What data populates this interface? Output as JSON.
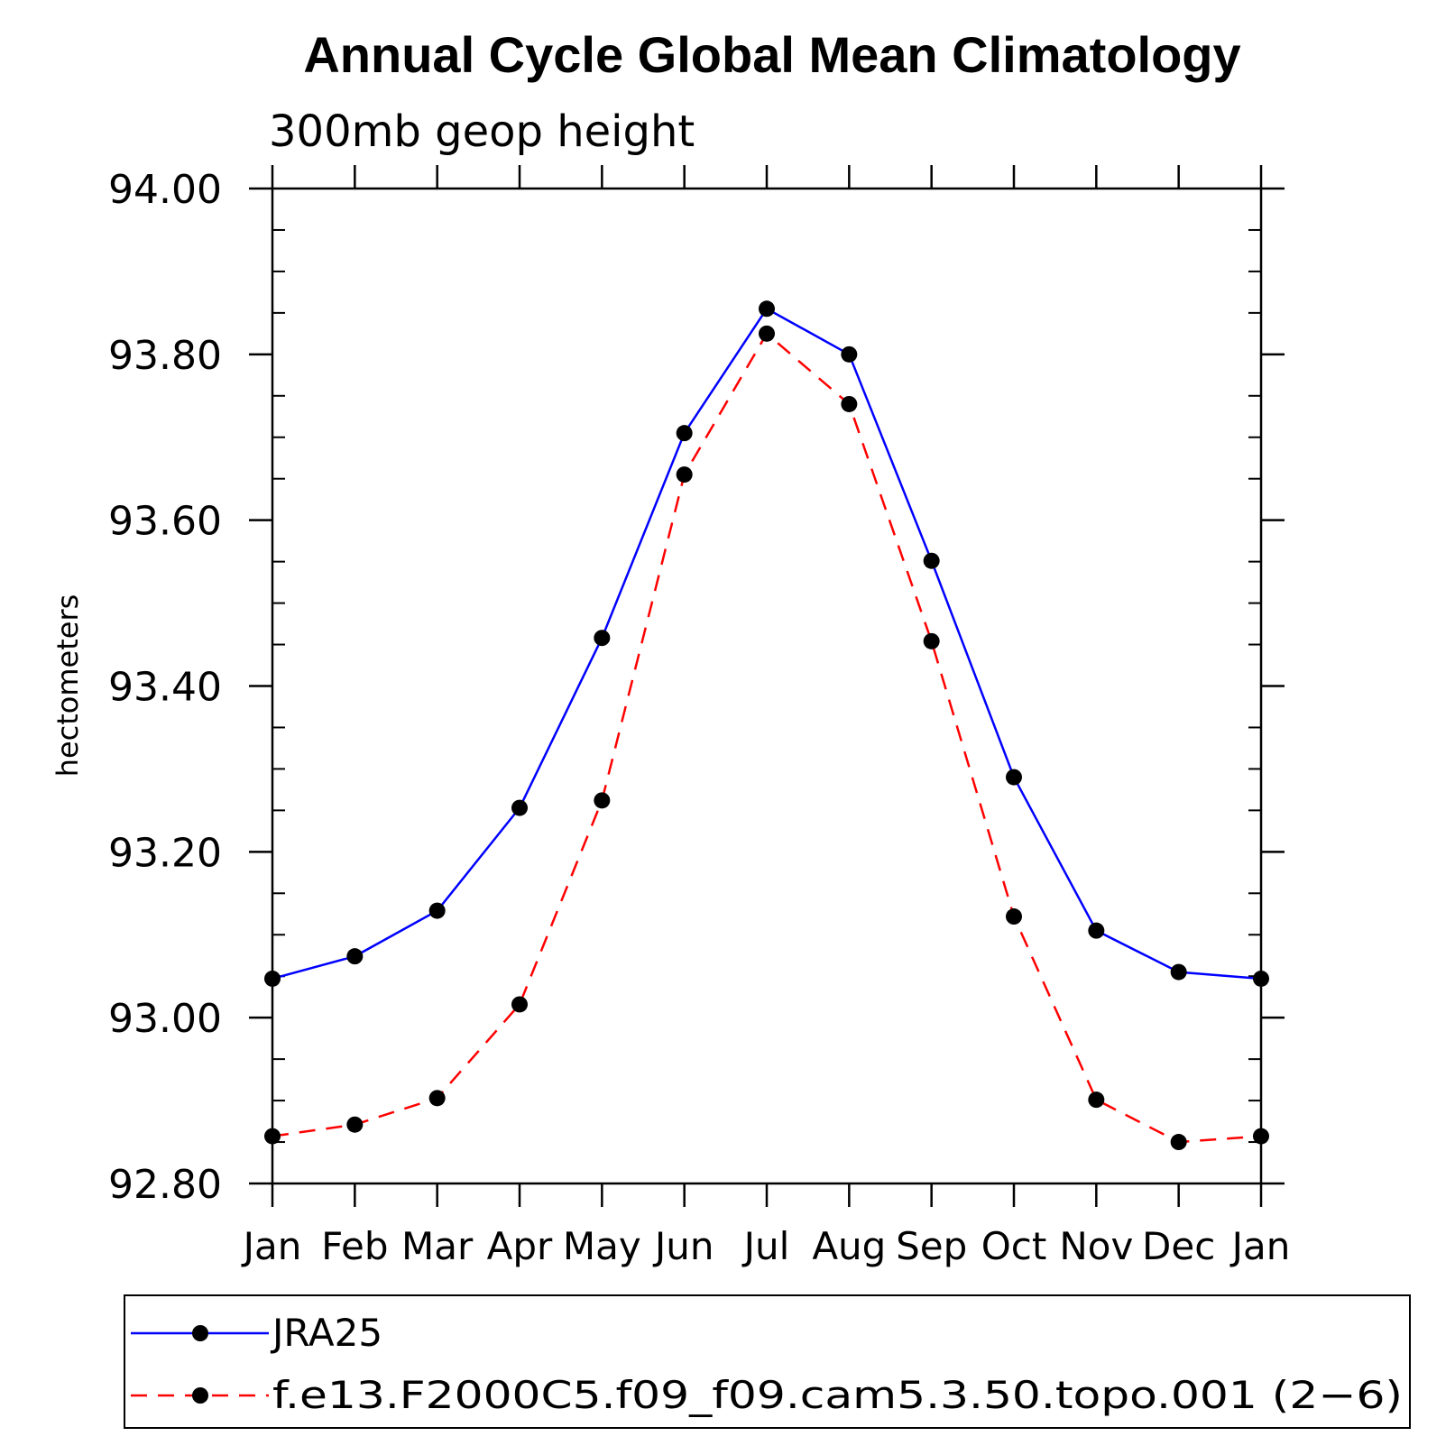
{
  "chart_data": {
    "type": "line",
    "title": "Annual Cycle Global Mean Climatology",
    "subtitle": "300mb geop height",
    "xlabel": "",
    "ylabel": "hectometers",
    "categories": [
      "Jan",
      "Feb",
      "Mar",
      "Apr",
      "May",
      "Jun",
      "Jul",
      "Aug",
      "Sep",
      "Oct",
      "Nov",
      "Dec",
      "Jan"
    ],
    "ylim": [
      92.8,
      94.0
    ],
    "yticks": [
      "92.80",
      "93.00",
      "93.20",
      "93.40",
      "93.60",
      "93.80",
      "94.00"
    ],
    "grid": false,
    "legend_position": "bottom",
    "series": [
      {
        "name": "JRA25",
        "color": "#0000ff",
        "style": "solid",
        "marker": "filled-circle",
        "values": [
          93.047,
          93.074,
          93.129,
          93.253,
          93.458,
          93.705,
          93.855,
          93.8,
          93.551,
          93.29,
          93.105,
          93.055,
          93.047
        ]
      },
      {
        "name": "f.e13.F2000C5.f09_f09.cam5.3.50.topo.001 (2−6)",
        "color": "#ff0000",
        "style": "dashed",
        "marker": "filled-circle",
        "values": [
          92.857,
          92.871,
          92.903,
          93.016,
          93.262,
          93.655,
          93.825,
          93.74,
          93.454,
          93.122,
          92.901,
          92.85,
          92.857
        ]
      }
    ]
  }
}
